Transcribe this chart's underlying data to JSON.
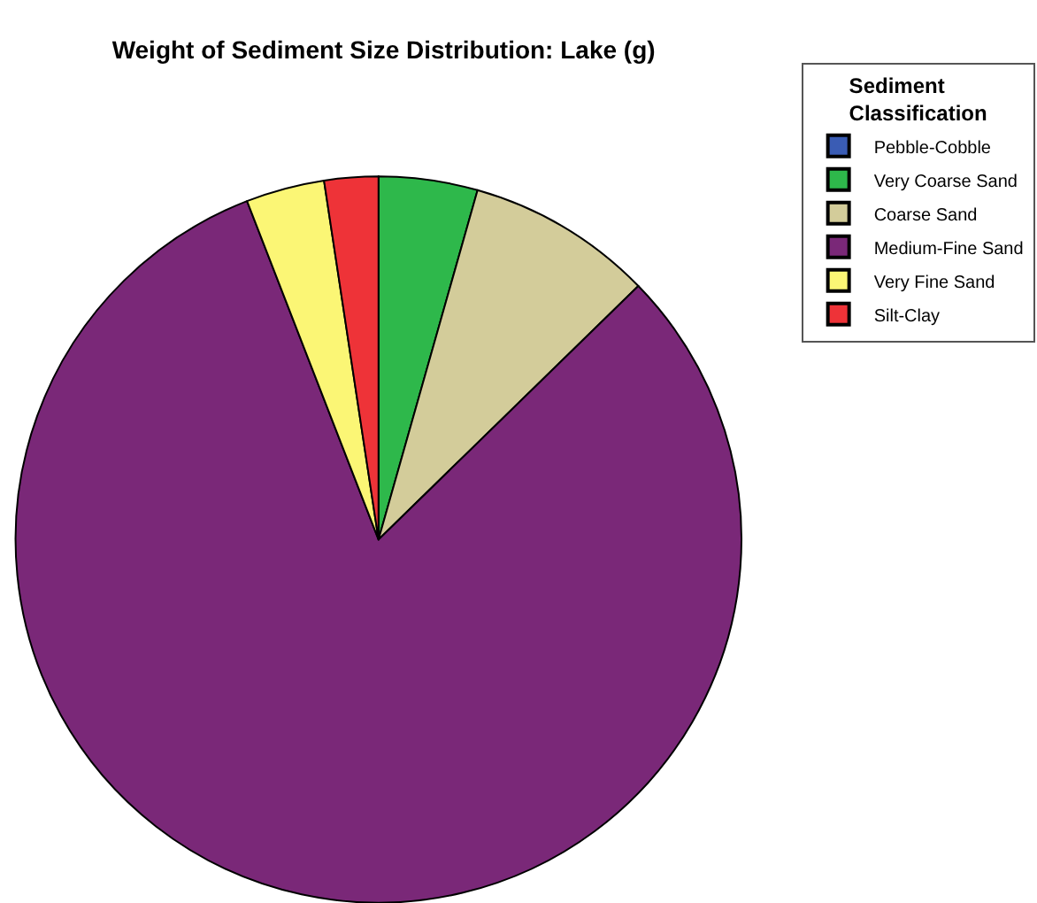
{
  "chart_data": {
    "type": "pie",
    "title": "Weight of Sediment Size Distribution: Lake (g)",
    "legend_title": "Sediment Classification",
    "categories": [
      "Pebble-Cobble",
      "Very Coarse Sand",
      "Coarse Sand",
      "Medium-Fine Sand",
      "Very Fine Sand",
      "Silt-Clay"
    ],
    "values": [
      0,
      4.4,
      8.3,
      81.4,
      3.5,
      2.4
    ],
    "colors": [
      "#3a5cb4",
      "#2eb84b",
      "#d3cc9a",
      "#7a2878",
      "#fbf675",
      "#ee3338"
    ],
    "legend": "top right"
  }
}
